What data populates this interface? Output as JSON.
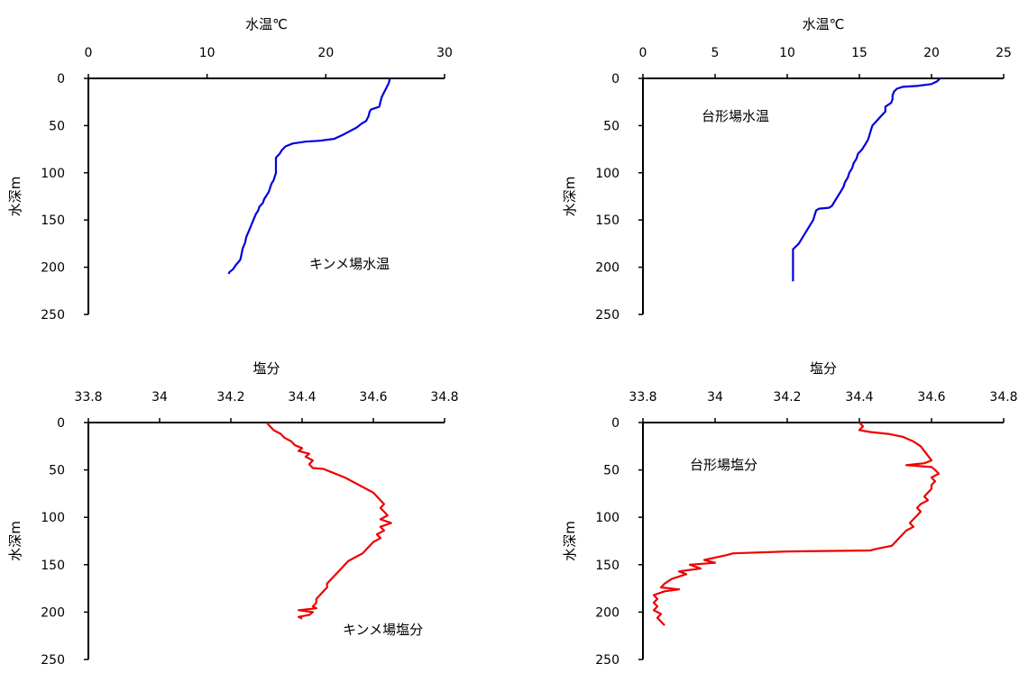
{
  "chart_data": [
    {
      "type": "line",
      "xlabel": "水温℃",
      "ylabel": "水深m",
      "xlim": [
        0,
        30
      ],
      "ylim": [
        0,
        250
      ],
      "x_ticks": [
        0,
        10,
        20,
        30
      ],
      "y_ticks": [
        0,
        50,
        100,
        150,
        200,
        250
      ],
      "x_axis_position": "top",
      "y_axis_reversed": true,
      "grid": false,
      "annotation": "キンメ場水温",
      "color": "#0000dd",
      "series": [
        {
          "points": [
            [
              25.4,
              0
            ],
            [
              25.3,
              5
            ],
            [
              25.1,
              10
            ],
            [
              24.9,
              15
            ],
            [
              24.7,
              20
            ],
            [
              24.6,
              25
            ],
            [
              24.5,
              30
            ],
            [
              23.8,
              33
            ],
            [
              23.7,
              35
            ],
            [
              23.6,
              40
            ],
            [
              23.4,
              45
            ],
            [
              23.0,
              48
            ],
            [
              22.6,
              52
            ],
            [
              22.0,
              56
            ],
            [
              21.4,
              60
            ],
            [
              20.7,
              64
            ],
            [
              19.5,
              66
            ],
            [
              18.3,
              67
            ],
            [
              17.2,
              69
            ],
            [
              16.6,
              72
            ],
            [
              16.3,
              76
            ],
            [
              16.1,
              80
            ],
            [
              15.8,
              84
            ],
            [
              15.8,
              88
            ],
            [
              15.8,
              92
            ],
            [
              15.8,
              96
            ],
            [
              15.8,
              100
            ],
            [
              15.7,
              104
            ],
            [
              15.6,
              108
            ],
            [
              15.4,
              112
            ],
            [
              15.3,
              116
            ],
            [
              15.2,
              120
            ],
            [
              15.0,
              124
            ],
            [
              14.8,
              128
            ],
            [
              14.7,
              132
            ],
            [
              14.4,
              136
            ],
            [
              14.3,
              140
            ],
            [
              14.1,
              144
            ],
            [
              13.9,
              150
            ],
            [
              13.7,
              156
            ],
            [
              13.5,
              162
            ],
            [
              13.3,
              168
            ],
            [
              13.2,
              174
            ],
            [
              13.0,
              180
            ],
            [
              12.9,
              186
            ],
            [
              12.8,
              192
            ],
            [
              12.6,
              195
            ],
            [
              12.4,
              198
            ],
            [
              12.2,
              202
            ],
            [
              11.9,
              205
            ],
            [
              11.8,
              207
            ]
          ]
        }
      ]
    },
    {
      "type": "line",
      "xlabel": "水温℃",
      "ylabel": "水深m",
      "xlim": [
        0,
        25
      ],
      "ylim": [
        0,
        250
      ],
      "x_ticks": [
        0,
        5,
        10,
        15,
        20,
        25
      ],
      "y_ticks": [
        0,
        50,
        100,
        150,
        200,
        250
      ],
      "x_axis_position": "top",
      "y_axis_reversed": true,
      "grid": false,
      "annotation": "台形場水温",
      "color": "#0000dd",
      "series": [
        {
          "points": [
            [
              20.6,
              0
            ],
            [
              20.4,
              3
            ],
            [
              20.0,
              6
            ],
            [
              19.0,
              8
            ],
            [
              18.0,
              9
            ],
            [
              17.6,
              11
            ],
            [
              17.4,
              14
            ],
            [
              17.3,
              18
            ],
            [
              17.3,
              22
            ],
            [
              17.2,
              26
            ],
            [
              17.0,
              28
            ],
            [
              16.8,
              30
            ],
            [
              16.8,
              35
            ],
            [
              16.5,
              40
            ],
            [
              16.2,
              45
            ],
            [
              15.9,
              50
            ],
            [
              15.8,
              55
            ],
            [
              15.7,
              60
            ],
            [
              15.6,
              65
            ],
            [
              15.4,
              70
            ],
            [
              15.2,
              75
            ],
            [
              14.9,
              80
            ],
            [
              14.8,
              85
            ],
            [
              14.6,
              90
            ],
            [
              14.5,
              95
            ],
            [
              14.3,
              100
            ],
            [
              14.2,
              105
            ],
            [
              14.0,
              110
            ],
            [
              13.9,
              115
            ],
            [
              13.7,
              120
            ],
            [
              13.5,
              125
            ],
            [
              13.3,
              130
            ],
            [
              13.1,
              135
            ],
            [
              12.9,
              137
            ],
            [
              12.2,
              138
            ],
            [
              12.0,
              140
            ],
            [
              11.9,
              145
            ],
            [
              11.8,
              150
            ],
            [
              11.6,
              155
            ],
            [
              11.4,
              160
            ],
            [
              11.2,
              165
            ],
            [
              11.0,
              170
            ],
            [
              10.8,
              175
            ],
            [
              10.6,
              178
            ],
            [
              10.4,
              181
            ],
            [
              10.4,
              190
            ],
            [
              10.4,
              200
            ],
            [
              10.4,
              210
            ],
            [
              10.4,
              215
            ]
          ]
        }
      ]
    },
    {
      "type": "line",
      "xlabel": "塩分",
      "ylabel": "水深m",
      "xlim": [
        33.8,
        34.8
      ],
      "ylim": [
        0,
        250
      ],
      "x_ticks": [
        33.8,
        34,
        34.2,
        34.4,
        34.6,
        34.8
      ],
      "x_tick_labels": [
        "33.8",
        "34",
        "34.2",
        "34.4",
        "34.6",
        "34.8"
      ],
      "y_ticks": [
        0,
        50,
        100,
        150,
        200,
        250
      ],
      "x_axis_position": "top",
      "y_axis_reversed": true,
      "grid": false,
      "annotation": "キンメ場塩分",
      "color": "#ee0000",
      "series": [
        {
          "points": [
            [
              34.3,
              0
            ],
            [
              34.31,
              4
            ],
            [
              34.32,
              8
            ],
            [
              34.34,
              12
            ],
            [
              34.35,
              16
            ],
            [
              34.37,
              20
            ],
            [
              34.38,
              24
            ],
            [
              34.4,
              27
            ],
            [
              34.39,
              30
            ],
            [
              34.42,
              33
            ],
            [
              34.41,
              36
            ],
            [
              34.43,
              40
            ],
            [
              34.42,
              44
            ],
            [
              34.43,
              48
            ],
            [
              34.46,
              49
            ],
            [
              34.48,
              52
            ],
            [
              34.5,
              55
            ],
            [
              34.52,
              58
            ],
            [
              34.54,
              62
            ],
            [
              34.56,
              66
            ],
            [
              34.58,
              70
            ],
            [
              34.6,
              74
            ],
            [
              34.61,
              78
            ],
            [
              34.62,
              82
            ],
            [
              34.63,
              86
            ],
            [
              34.62,
              90
            ],
            [
              34.63,
              94
            ],
            [
              34.64,
              98
            ],
            [
              34.62,
              102
            ],
            [
              34.65,
              106
            ],
            [
              34.62,
              110
            ],
            [
              34.63,
              114
            ],
            [
              34.61,
              118
            ],
            [
              34.62,
              122
            ],
            [
              34.6,
              126
            ],
            [
              34.59,
              130
            ],
            [
              34.58,
              134
            ],
            [
              34.57,
              138
            ],
            [
              34.55,
              142
            ],
            [
              34.53,
              146
            ],
            [
              34.52,
              150
            ],
            [
              34.51,
              154
            ],
            [
              34.5,
              158
            ],
            [
              34.49,
              162
            ],
            [
              34.48,
              166
            ],
            [
              34.47,
              170
            ],
            [
              34.47,
              174
            ],
            [
              34.46,
              178
            ],
            [
              34.45,
              182
            ],
            [
              34.44,
              186
            ],
            [
              34.44,
              190
            ],
            [
              34.43,
              194
            ],
            [
              34.44,
              196
            ],
            [
              34.39,
              198
            ],
            [
              34.43,
              200
            ],
            [
              34.42,
              203
            ],
            [
              34.39,
              205
            ],
            [
              34.4,
              207
            ]
          ]
        }
      ]
    },
    {
      "type": "line",
      "xlabel": "塩分",
      "ylabel": "水深m",
      "xlim": [
        33.8,
        34.8
      ],
      "ylim": [
        0,
        250
      ],
      "x_ticks": [
        33.8,
        34,
        34.2,
        34.4,
        34.6,
        34.8
      ],
      "x_tick_labels": [
        "33.8",
        "34",
        "34.2",
        "34.4",
        "34.6",
        "34.8"
      ],
      "y_ticks": [
        0,
        50,
        100,
        150,
        200,
        250
      ],
      "x_axis_position": "top",
      "y_axis_reversed": true,
      "grid": false,
      "annotation": "台形場塩分",
      "color": "#ee0000",
      "series": [
        {
          "points": [
            [
              34.4,
              0
            ],
            [
              34.41,
              4
            ],
            [
              34.4,
              8
            ],
            [
              34.43,
              10
            ],
            [
              34.48,
              12
            ],
            [
              34.52,
              15
            ],
            [
              34.55,
              20
            ],
            [
              34.57,
              25
            ],
            [
              34.58,
              30
            ],
            [
              34.59,
              35
            ],
            [
              34.6,
              40
            ],
            [
              34.58,
              43
            ],
            [
              34.53,
              45
            ],
            [
              34.6,
              47
            ],
            [
              34.61,
              50
            ],
            [
              34.62,
              54
            ],
            [
              34.6,
              58
            ],
            [
              34.61,
              62
            ],
            [
              34.6,
              66
            ],
            [
              34.6,
              70
            ],
            [
              34.59,
              74
            ],
            [
              34.58,
              78
            ],
            [
              34.59,
              82
            ],
            [
              34.57,
              86
            ],
            [
              34.56,
              90
            ],
            [
              34.57,
              94
            ],
            [
              34.56,
              98
            ],
            [
              34.55,
              102
            ],
            [
              34.54,
              106
            ],
            [
              34.55,
              110
            ],
            [
              34.53,
              114
            ],
            [
              34.52,
              118
            ],
            [
              34.51,
              122
            ],
            [
              34.5,
              126
            ],
            [
              34.49,
              130
            ],
            [
              34.45,
              133
            ],
            [
              34.43,
              135
            ],
            [
              34.2,
              136
            ],
            [
              34.05,
              138
            ],
            [
              34.03,
              140
            ],
            [
              33.97,
              145
            ],
            [
              34.0,
              148
            ],
            [
              33.93,
              150
            ],
            [
              33.96,
              154
            ],
            [
              33.9,
              157
            ],
            [
              33.92,
              160
            ],
            [
              33.88,
              165
            ],
            [
              33.86,
              170
            ],
            [
              33.85,
              174
            ],
            [
              33.9,
              176
            ],
            [
              33.86,
              178
            ],
            [
              33.83,
              182
            ],
            [
              33.84,
              186
            ],
            [
              33.83,
              190
            ],
            [
              33.84,
              194
            ],
            [
              33.83,
              198
            ],
            [
              33.85,
              202
            ],
            [
              33.84,
              206
            ],
            [
              33.85,
              210
            ],
            [
              33.86,
              214
            ]
          ]
        }
      ]
    }
  ]
}
